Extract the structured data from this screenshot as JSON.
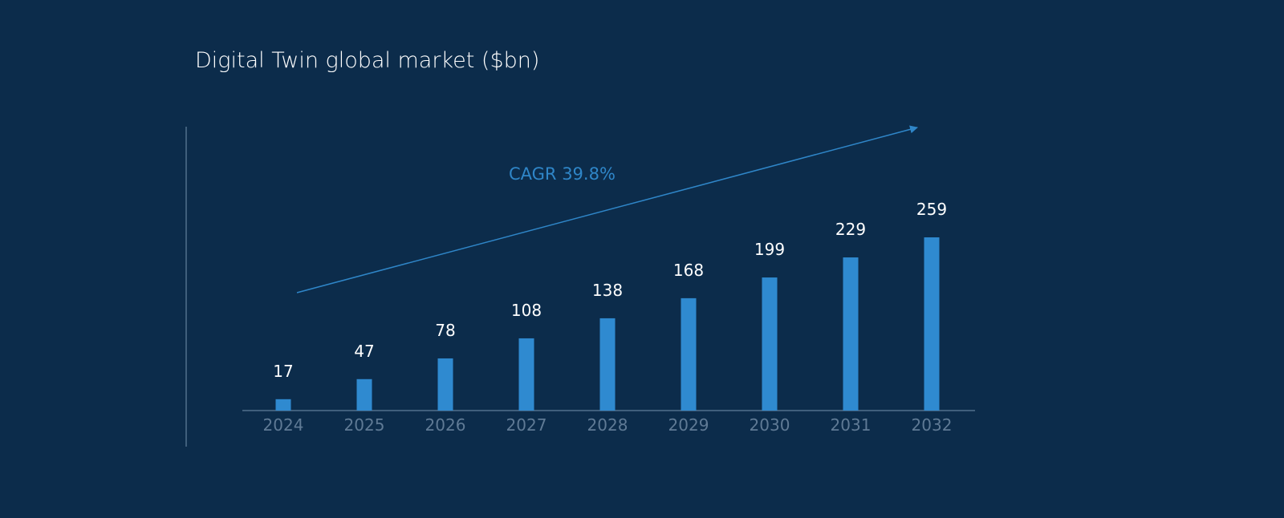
{
  "colors": {
    "background": "#0c2c4b",
    "bar": "#2f8ad0",
    "trend": "#2f86c8",
    "axis": "#52708d",
    "tick_text": "#5f7a95",
    "value_text": "#ffffff"
  },
  "chart_data": {
    "type": "bar",
    "title": "Digital Twin global market ($bn)",
    "categories": [
      "2024",
      "2025",
      "2026",
      "2027",
      "2028",
      "2029",
      "2030",
      "2031",
      "2032"
    ],
    "values": [
      17,
      47,
      78,
      108,
      138,
      168,
      199,
      229,
      259
    ],
    "data_labels": [
      "17",
      "47",
      "78",
      "108",
      "138",
      "168",
      "199",
      "229",
      "259"
    ],
    "annotation": "CAGR 39.8%",
    "ylim": [
      0,
      259
    ],
    "grid": false,
    "legend": "none"
  }
}
